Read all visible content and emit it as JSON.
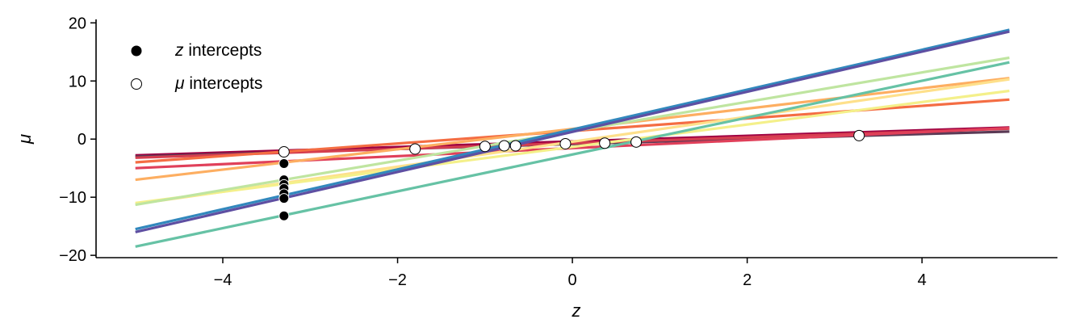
{
  "chart_data": {
    "type": "line",
    "xlabel": "z",
    "ylabel": "μ",
    "xlim": [
      -5.45,
      5.55
    ],
    "ylim": [
      -20.4,
      20.6
    ],
    "xticks": [
      -4,
      -2,
      0,
      2,
      4
    ],
    "yticks": [
      -20,
      -10,
      0,
      10,
      20
    ],
    "x_tick_labels": [
      "−4",
      "−2",
      "0",
      "2",
      "4"
    ],
    "y_tick_labels": [
      "−20",
      "−10",
      "0",
      "10",
      "20"
    ],
    "grid": false,
    "legend_position": "top-left",
    "legend": [
      {
        "symbol": "z",
        "text": " intercepts",
        "marker": "filled-circle",
        "color": "#000000"
      },
      {
        "symbol": "μ",
        "text": " intercepts",
        "marker": "open-circle",
        "color": "#ffffff"
      }
    ],
    "lines": [
      {
        "x": [
          -5,
          5
        ],
        "y": [
          -2.8,
          2.0
        ],
        "color": "#9e0142"
      },
      {
        "x": [
          -5,
          5
        ],
        "y": [
          -3.0,
          1.3
        ],
        "color": "#5a3a55"
      },
      {
        "x": [
          -5,
          5
        ],
        "y": [
          -3.2,
          1.8
        ],
        "color": "#d53e4f"
      },
      {
        "x": [
          -5,
          5
        ],
        "y": [
          -5.0,
          1.9
        ],
        "color": "#e0405a"
      },
      {
        "x": [
          -5,
          5
        ],
        "y": [
          -4.0,
          6.8
        ],
        "color": "#f46d43"
      },
      {
        "x": [
          -5,
          5
        ],
        "y": [
          -7.0,
          10.5
        ],
        "color": "#fdae61"
      },
      {
        "x": [
          -5,
          5
        ],
        "y": [
          -11.2,
          10.3
        ],
        "color": "#fee08b"
      },
      {
        "x": [
          -5,
          5
        ],
        "y": [
          -11.0,
          8.3
        ],
        "color": "#f4f08a"
      },
      {
        "x": [
          -5,
          5
        ],
        "y": [
          -11.3,
          14.0
        ],
        "color": "#bfe5a0"
      },
      {
        "x": [
          -5,
          5
        ],
        "y": [
          -18.5,
          13.2
        ],
        "color": "#66c2a5"
      },
      {
        "x": [
          -5,
          5
        ],
        "y": [
          -15.5,
          18.8
        ],
        "color": "#3288bd"
      },
      {
        "x": [
          -5,
          5
        ],
        "y": [
          -16.0,
          18.5
        ],
        "color": "#5e4fa2"
      }
    ],
    "z_intercepts": {
      "x": [
        -3.3,
        -3.3,
        -3.3,
        -3.3,
        -3.3,
        -3.3,
        -3.3
      ],
      "y": [
        -4.2,
        -7.0,
        -7.8,
        -8.5,
        -9.4,
        -10.2,
        -13.2
      ]
    },
    "mu_intercepts": {
      "x": [
        -3.3,
        -1.8,
        -1.0,
        -0.78,
        -0.65,
        -0.08,
        0.37,
        0.73,
        3.28
      ],
      "y": [
        -2.2,
        -1.7,
        -1.25,
        -1.15,
        -1.15,
        -0.8,
        -0.7,
        -0.5,
        0.6
      ]
    }
  }
}
